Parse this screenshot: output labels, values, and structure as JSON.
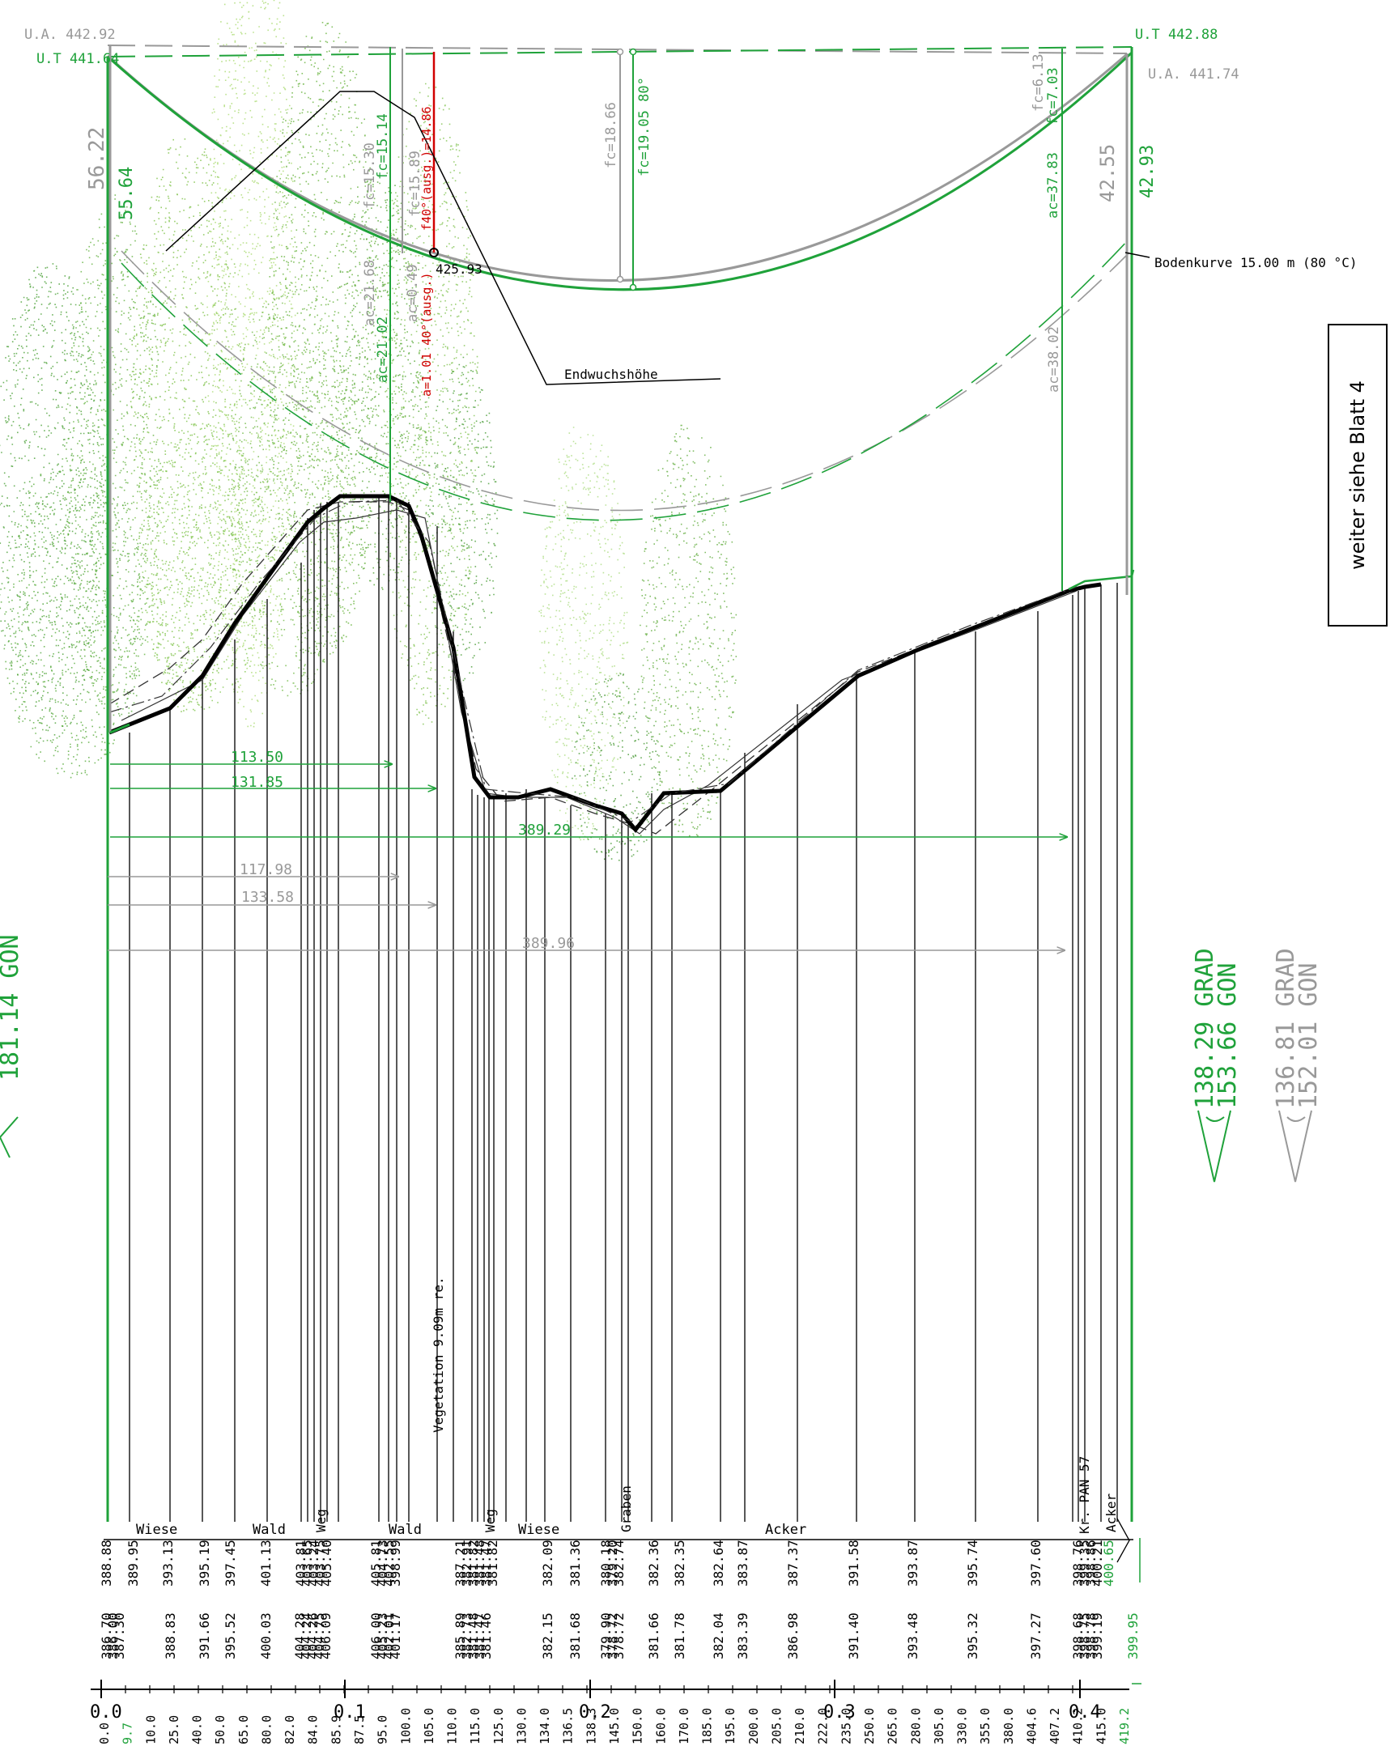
{
  "labels": {
    "ua_left": "U.A. 442.92",
    "ut_left": "U.T 441.64",
    "ut_right": "U.T 442.88",
    "ua_right": "U.A. 441.74",
    "h_left_gray": "56.22",
    "h_left_green": "55.64",
    "h_right_gray": "42.55",
    "h_right_green": "42.93",
    "fc_1530": "fc=15.30",
    "fc_1514": "fc=15.14",
    "fc_1589": "fc=15.89",
    "f40": "f40°(ausg.)=14.86",
    "ac_2168": "ac=21.68",
    "ac_2102": "ac=21.02",
    "ac_049": "ac=0.49",
    "a_101": "a=1.01 40°(ausg.)",
    "fc_1866": "fc=18.66",
    "fc_1905": "fc=19.05 80°",
    "fc_613": "fc=6.13",
    "fc_703": "fc=7.03",
    "ac_3783": "ac=37.83",
    "ac_3802": "ac=38.02",
    "point_42593": "425.93",
    "endwuchs": "Endwuchshöhe",
    "bodenkurve": "Bodenkurve 15.00 m (80 °C)",
    "veg": "Vegetation 9.09m re.",
    "dim_11350": "113.50",
    "dim_13185": "131.85",
    "dim_38929": "389.29",
    "dim_11798": "117.98",
    "dim_13358": "133.58",
    "dim_38996": "389.96",
    "kr_pan": "Kr. PAN 57",
    "next_sheet": "weiter siehe Blatt 4"
  },
  "angles": {
    "left_green": "181.14 GON",
    "green_grad": "138.29 GRAD",
    "green_gon": "153.66 GON",
    "gray_grad": "136.81 GRAD",
    "gray_gon": "152.01 GON"
  },
  "landuse": [
    "Wiese",
    "Wald",
    "Weg",
    "Wald",
    "Weg",
    "Wiese",
    "Graben",
    "Acker",
    "Acker"
  ],
  "row1_values": [
    "388.88",
    "389.95",
    "393.13",
    "395.19",
    "397.45",
    "401.13",
    "403.81",
    "403.65",
    "403.24",
    "403.75",
    "405.40",
    "405.81",
    "404.73",
    "402.55",
    "398.99",
    "387.21",
    "382.91",
    "381.82",
    "381.48",
    "381.47",
    "381.82",
    "382.09",
    "381.36",
    "380.18",
    "379.20",
    "382.74",
    "382.36",
    "382.35",
    "382.64",
    "383.87",
    "387.37",
    "391.58",
    "393.87",
    "395.74",
    "397.60",
    "398.76",
    "399.35",
    "398.86",
    "400.21",
    "400.65"
  ],
  "row2_values": [
    "386.70",
    "386.00",
    "387.30",
    "388.83",
    "391.66",
    "395.52",
    "400.03",
    "404.28",
    "404.24",
    "404.26",
    "404.75",
    "406.09",
    "406.00",
    "405.23",
    "402.01",
    "401.17",
    "385.89",
    "382.73",
    "381.48",
    "381.47",
    "381.46",
    "382.15",
    "381.68",
    "379.90",
    "378.72",
    "378.72",
    "381.66",
    "381.78",
    "382.04",
    "383.39",
    "386.98",
    "391.40",
    "393.48",
    "395.32",
    "397.27",
    "398.68",
    "398.75",
    "398.78",
    "399.19",
    "399.95"
  ],
  "km_labels": [
    "0.0",
    "0.1",
    "0.2",
    "0.3",
    "0.4"
  ],
  "stations": [
    "0.0",
    "9.7",
    "10.0",
    "25.0",
    "40.0",
    "50.0",
    "65.0",
    "80.0",
    "82.0",
    "84.0",
    "85.9",
    "87.5",
    "95.0",
    "100.0",
    "105.0",
    "110.0",
    "115.0",
    "125.0",
    "130.0",
    "134.0",
    "136.5",
    "138.3",
    "145.0",
    "150.0",
    "160.0",
    "170.0",
    "185.0",
    "195.0",
    "200.0",
    "205.0",
    "210.0",
    "222.0",
    "235.0",
    "250.0",
    "265.0",
    "280.0",
    "305.0",
    "330.0",
    "355.0",
    "380.0",
    "404.6",
    "407.2",
    "410.2",
    "415.0",
    "419.2"
  ]
}
